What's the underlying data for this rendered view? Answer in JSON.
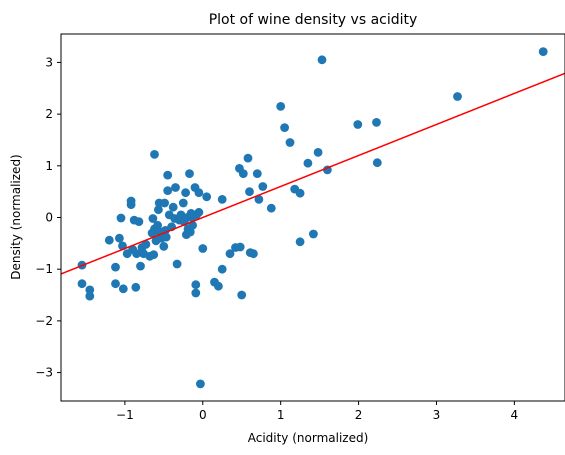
{
  "chart_data": {
    "type": "scatter",
    "title": "Plot of wine density vs acidity",
    "xlabel": "Acidity (normalized)",
    "ylabel": "Density (normalized)",
    "xlim": [
      -1.82,
      4.65
    ],
    "ylim": [
      -3.55,
      3.55
    ],
    "xticks": [
      -1,
      0,
      1,
      2,
      3,
      4
    ],
    "yticks": [
      -3,
      -2,
      -1,
      0,
      1,
      2,
      3
    ],
    "grid": false,
    "marker_color": "#1f77b4",
    "fit_line": {
      "color": "#ff0000",
      "slope": 0.6,
      "intercept": 0.0
    },
    "points": [
      [
        -1.55,
        -0.92
      ],
      [
        -1.55,
        -1.28
      ],
      [
        -1.45,
        -1.4
      ],
      [
        -1.45,
        -1.52
      ],
      [
        -1.2,
        -0.44
      ],
      [
        -1.12,
        -0.96
      ],
      [
        -1.12,
        -1.28
      ],
      [
        -1.07,
        -0.4
      ],
      [
        -1.05,
        -0.01
      ],
      [
        -1.03,
        -0.55
      ],
      [
        -1.02,
        -1.38
      ],
      [
        -0.97,
        -0.7
      ],
      [
        -0.92,
        0.32
      ],
      [
        -0.92,
        0.25
      ],
      [
        -0.9,
        -0.62
      ],
      [
        -0.88,
        -0.05
      ],
      [
        -0.86,
        -1.35
      ],
      [
        -0.85,
        -0.7
      ],
      [
        -0.82,
        -0.08
      ],
      [
        -0.8,
        -0.94
      ],
      [
        -0.78,
        -0.58
      ],
      [
        -0.76,
        -0.7
      ],
      [
        -0.73,
        -0.52
      ],
      [
        -0.68,
        -0.75
      ],
      [
        -0.65,
        -0.3
      ],
      [
        -0.64,
        -0.02
      ],
      [
        -0.63,
        -0.72
      ],
      [
        -0.62,
        -0.22
      ],
      [
        -0.62,
        1.22
      ],
      [
        -0.6,
        -0.45
      ],
      [
        -0.58,
        -0.15
      ],
      [
        -0.57,
        0.15
      ],
      [
        -0.56,
        0.28
      ],
      [
        -0.55,
        -0.3
      ],
      [
        -0.53,
        -0.4
      ],
      [
        -0.52,
        -0.28
      ],
      [
        -0.5,
        -0.56
      ],
      [
        -0.49,
        0.28
      ],
      [
        -0.48,
        -0.25
      ],
      [
        -0.47,
        -0.38
      ],
      [
        -0.45,
        0.52
      ],
      [
        -0.45,
        0.82
      ],
      [
        -0.43,
        0.05
      ],
      [
        -0.4,
        -0.18
      ],
      [
        -0.38,
        0.2
      ],
      [
        -0.36,
        -0.02
      ],
      [
        -0.35,
        0.58
      ],
      [
        -0.33,
        -0.9
      ],
      [
        -0.3,
        -0.05
      ],
      [
        -0.28,
        0.05
      ],
      [
        -0.25,
        0.28
      ],
      [
        -0.24,
        -0.08
      ],
      [
        -0.22,
        0.48
      ],
      [
        -0.21,
        -0.33
      ],
      [
        -0.2,
        0.0
      ],
      [
        -0.19,
        -0.22
      ],
      [
        -0.17,
        0.85
      ],
      [
        -0.16,
        -0.28
      ],
      [
        -0.15,
        0.08
      ],
      [
        -0.14,
        0.0
      ],
      [
        -0.13,
        -0.15
      ],
      [
        -0.1,
        0.58
      ],
      [
        -0.09,
        -1.3
      ],
      [
        -0.09,
        -1.46
      ],
      [
        -0.08,
        0.05
      ],
      [
        -0.05,
        0.48
      ],
      [
        -0.05,
        0.1
      ],
      [
        -0.03,
        -3.22
      ],
      [
        0.0,
        -0.6
      ],
      [
        0.05,
        0.4
      ],
      [
        0.15,
        -1.25
      ],
      [
        0.2,
        -1.33
      ],
      [
        0.25,
        -1.0
      ],
      [
        0.25,
        0.35
      ],
      [
        0.35,
        -0.7
      ],
      [
        0.42,
        -0.58
      ],
      [
        0.47,
        0.95
      ],
      [
        0.48,
        -0.57
      ],
      [
        0.5,
        -1.5
      ],
      [
        0.52,
        0.85
      ],
      [
        0.58,
        1.15
      ],
      [
        0.6,
        0.5
      ],
      [
        0.61,
        -0.68
      ],
      [
        0.65,
        -0.7
      ],
      [
        0.7,
        0.85
      ],
      [
        0.72,
        0.35
      ],
      [
        0.77,
        0.6
      ],
      [
        0.88,
        0.18
      ],
      [
        1.0,
        2.15
      ],
      [
        1.05,
        1.74
      ],
      [
        1.12,
        1.45
      ],
      [
        1.18,
        0.55
      ],
      [
        1.25,
        -0.47
      ],
      [
        1.25,
        0.47
      ],
      [
        1.35,
        1.05
      ],
      [
        1.42,
        -0.32
      ],
      [
        1.48,
        1.26
      ],
      [
        1.53,
        3.05
      ],
      [
        1.6,
        0.92
      ],
      [
        1.99,
        1.8
      ],
      [
        2.23,
        1.84
      ],
      [
        2.24,
        1.06
      ],
      [
        3.27,
        2.34
      ],
      [
        4.37,
        3.21
      ]
    ]
  }
}
